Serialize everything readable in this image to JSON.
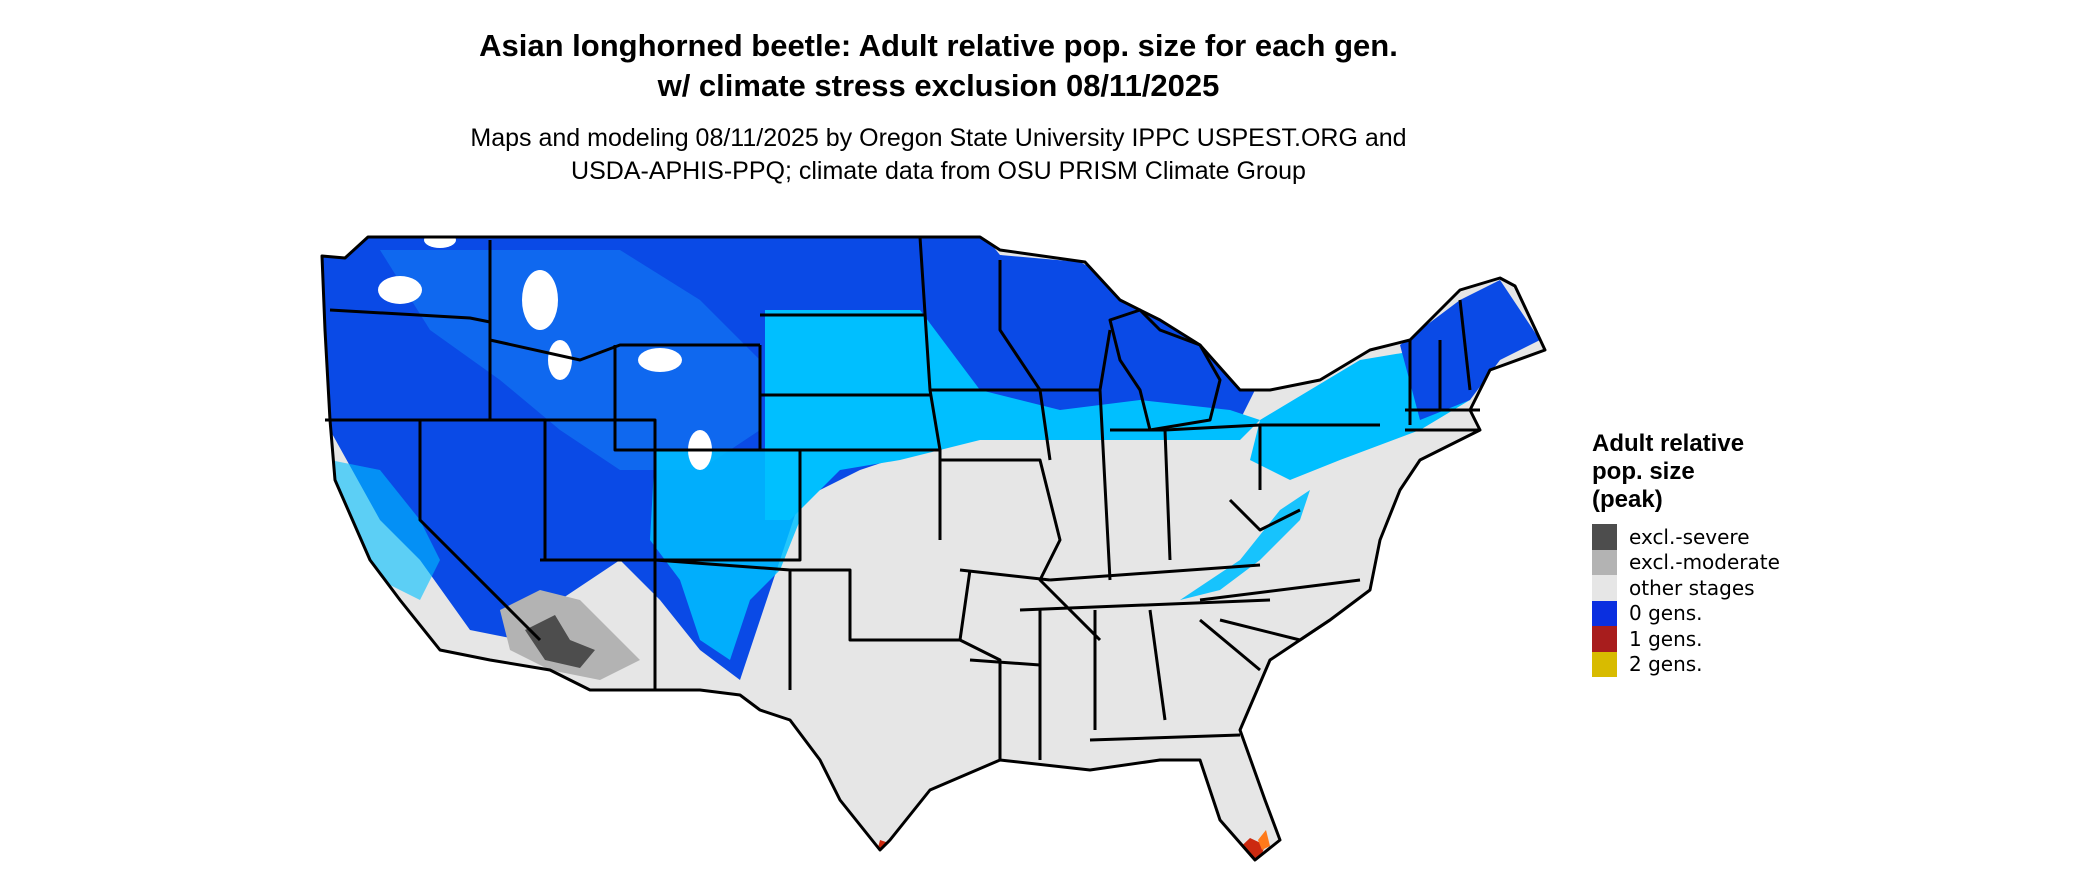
{
  "figure": {
    "title_line1": "Asian longhorned beetle: Adult relative pop. size for each gen.",
    "title_line2": "w/ climate stress exclusion 08/11/2025",
    "subtitle_line1": "Maps and modeling 08/11/2025 by Oregon State University IPPC USPEST.ORG and",
    "subtitle_line2": "USDA-APHIS-PPQ; climate data from OSU PRISM Climate Group"
  },
  "legend": {
    "title_lines": [
      "Adult relative",
      "pop. size",
      "(peak)"
    ],
    "items": [
      {
        "label": "excl.-severe",
        "color": "#4d4d4d"
      },
      {
        "label": "excl.-moderate",
        "color": "#b3b3b3"
      },
      {
        "label": "other stages",
        "color": "#e6e6e6"
      },
      {
        "label": "0 gens.",
        "color": "#0a2fe0"
      },
      {
        "label": "1 gens.",
        "color": "#a81d1d"
      },
      {
        "label": "2 gens.",
        "color": "#d8bb00"
      }
    ]
  },
  "map_colors": {
    "other_stages": "#e6e6e6",
    "zero_gens_dark": "#0a4ae6",
    "zero_gens_mid": "#0f6cf0",
    "zero_gens_light": "#00bfff",
    "excl_moderate": "#b3b3b3",
    "excl_severe": "#4d4d4d",
    "one_gens": "#cc2a10",
    "two_gens": "#ff7a1a",
    "borders": "#000000",
    "snow_patches": "#ffffff"
  }
}
